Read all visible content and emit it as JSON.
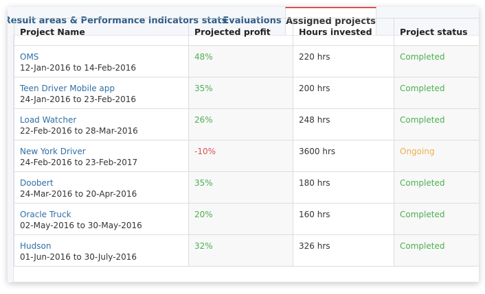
{
  "tabs": [
    {
      "label": "Result areas & Performance indicators stats"
    },
    {
      "label": "Evaluations"
    },
    {
      "label": "Assigned projects"
    }
  ],
  "table": {
    "columns": [
      "Project Name",
      "Projected profit",
      "Hours invested",
      "Project status"
    ],
    "rows": [
      {
        "name": "OMS",
        "dates": "12-Jan-2016 to 14-Feb-2016",
        "profit": "48%",
        "hours": "220 hrs",
        "status": "Completed"
      },
      {
        "name": "Teen Driver Mobile app",
        "dates": "24-Jan-2016 to 23-Feb-2016",
        "profit": "35%",
        "hours": "200 hrs",
        "status": "Completed"
      },
      {
        "name": "Load Watcher",
        "dates": "22-Feb-2016 to 28-Mar-2016",
        "profit": "26%",
        "hours": "248 hrs",
        "status": "Completed"
      },
      {
        "name": "New York Driver",
        "dates": "24-Feb-2016 to 23-Feb-2017",
        "profit": "-10%",
        "hours": "3600 hrs",
        "status": "Ongoing"
      },
      {
        "name": "Doobert",
        "dates": "24-Mar-2016 to 20-Apr-2016",
        "profit": "35%",
        "hours": "180 hrs",
        "status": "Completed"
      },
      {
        "name": "Oracle Truck",
        "dates": "02-May-2016 to 30-May-2016",
        "profit": "20%",
        "hours": "160 hrs",
        "status": "Completed"
      },
      {
        "name": "Hudson",
        "dates": "01-Jun-2016 to 30-July-2016",
        "profit": "32%",
        "hours": "326 hrs",
        "status": "Completed"
      }
    ]
  },
  "colors": {
    "positive": "#4caf50",
    "negative": "#d9534f",
    "ongoing": "#f0ad4e",
    "link": "#2f6ea6",
    "active_tab_accent": "#d9534f"
  }
}
